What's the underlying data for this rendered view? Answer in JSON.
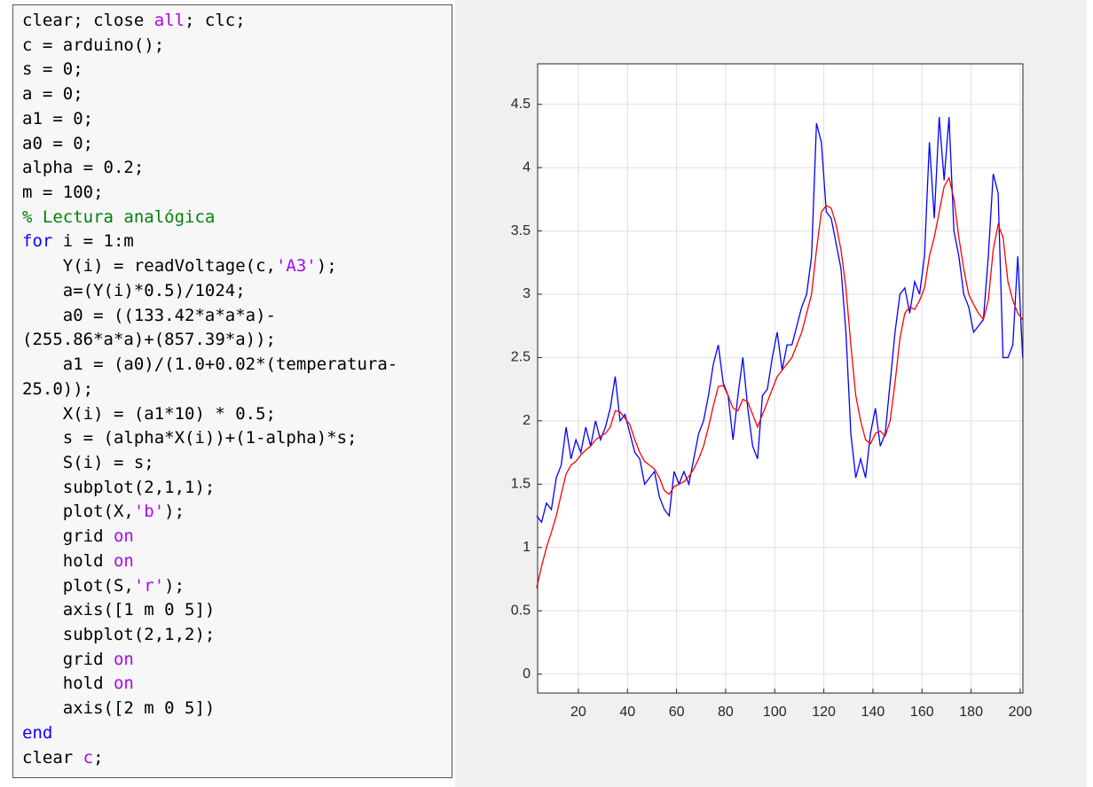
{
  "code": {
    "lines": [
      [
        "clear; close ",
        {
          "text": "all",
          "color": "#a709f5"
        },
        "; clc;"
      ],
      "c = arduino();",
      "s = 0;",
      "a = 0;",
      "a1 = 0;",
      "a0 = 0;",
      "alpha = 0.2;",
      "m = 100;",
      [
        {
          "text": "% Lectura analógica",
          "color": "#028009"
        }
      ],
      [
        {
          "text": "for",
          "color": "#0e00ff"
        },
        " i = 1:m"
      ],
      [
        "    Y(i) = readVoltage(c,",
        {
          "text": "'A3'",
          "color": "#a709f5"
        },
        ");"
      ],
      "    a=(Y(i)*0.5)/1024;",
      "    a0 = ((133.42*a*a*a)-",
      "(255.86*a*a)+(857.39*a));",
      "    a1 = (a0)/(1.0+0.02*(temperatura-",
      "25.0));",
      "    X(i) = (a1*10) * 0.5;",
      "    s = (alpha*X(i))+(1-alpha)*s;",
      "    S(i) = s;",
      "    subplot(2,1,1);",
      [
        "    plot(X,",
        {
          "text": "'b'",
          "color": "#a709f5"
        },
        ");"
      ],
      [
        "    grid ",
        {
          "text": "on",
          "color": "#a709f5"
        }
      ],
      [
        "    hold ",
        {
          "text": "on",
          "color": "#a709f5"
        }
      ],
      [
        "    plot(S,",
        {
          "text": "'r'",
          "color": "#a709f5"
        },
        ");"
      ],
      "    axis([1 m 0 5])",
      "    subplot(2,1,2);",
      [
        "    grid ",
        {
          "text": "on",
          "color": "#a709f5"
        }
      ],
      [
        "    hold ",
        {
          "text": "on",
          "color": "#a709f5"
        }
      ],
      "    axis([2 m 0 5])",
      [
        {
          "text": "end",
          "color": "#0e00ff"
        }
      ],
      [
        "clear ",
        {
          "text": "c",
          "color": "#a709f5"
        },
        ";"
      ]
    ]
  },
  "chart_data": {
    "type": "line",
    "grid": true,
    "x": [
      3,
      5,
      7,
      9,
      11,
      13,
      15,
      17,
      19,
      21,
      23,
      25,
      27,
      29,
      31,
      33,
      35,
      37,
      39,
      41,
      43,
      45,
      47,
      49,
      51,
      53,
      55,
      57,
      59,
      61,
      63,
      65,
      67,
      69,
      71,
      73,
      75,
      77,
      79,
      81,
      83,
      85,
      87,
      89,
      91,
      93,
      95,
      97,
      99,
      101,
      103,
      105,
      107,
      109,
      111,
      113,
      115,
      117,
      119,
      121,
      123,
      125,
      127,
      129,
      131,
      133,
      135,
      137,
      139,
      141,
      143,
      145,
      147,
      149,
      151,
      153,
      155,
      157,
      159,
      161,
      163,
      165,
      167,
      169,
      171,
      173,
      175,
      177,
      179,
      181,
      183,
      185,
      187,
      189,
      191,
      193,
      195,
      197,
      199,
      201
    ],
    "series": [
      {
        "color": "#0000ff",
        "values": [
          1.25,
          1.2,
          1.35,
          1.3,
          1.55,
          1.65,
          1.95,
          1.7,
          1.85,
          1.75,
          1.95,
          1.8,
          2.0,
          1.85,
          1.95,
          2.1,
          2.35,
          2.0,
          2.05,
          1.9,
          1.75,
          1.7,
          1.5,
          1.55,
          1.6,
          1.4,
          1.3,
          1.25,
          1.6,
          1.5,
          1.6,
          1.5,
          1.7,
          1.9,
          2.0,
          2.2,
          2.45,
          2.6,
          2.3,
          2.2,
          1.85,
          2.2,
          2.5,
          2.1,
          1.8,
          1.7,
          2.2,
          2.25,
          2.5,
          2.7,
          2.4,
          2.6,
          2.6,
          2.75,
          2.9,
          3.0,
          3.3,
          4.35,
          4.2,
          3.65,
          3.6,
          3.4,
          3.2,
          2.7,
          1.9,
          1.55,
          1.7,
          1.55,
          1.9,
          2.1,
          1.8,
          1.9,
          2.3,
          2.7,
          3.0,
          3.05,
          2.85,
          3.1,
          3.0,
          3.3,
          4.2,
          3.6,
          4.4,
          3.9,
          4.4,
          3.5,
          3.3,
          3.0,
          2.9,
          2.7,
          2.75,
          2.8,
          3.3,
          3.95,
          3.8,
          2.5,
          2.5,
          2.6,
          3.3,
          2.5
        ]
      },
      {
        "color": "#ff0000",
        "values": [
          0.68,
          0.85,
          1.0,
          1.12,
          1.25,
          1.42,
          1.58,
          1.65,
          1.68,
          1.73,
          1.77,
          1.8,
          1.85,
          1.88,
          1.9,
          1.95,
          2.08,
          2.07,
          2.02,
          1.97,
          1.85,
          1.75,
          1.68,
          1.65,
          1.62,
          1.55,
          1.45,
          1.42,
          1.48,
          1.5,
          1.52,
          1.56,
          1.62,
          1.7,
          1.8,
          1.95,
          2.12,
          2.27,
          2.28,
          2.2,
          2.1,
          2.08,
          2.17,
          2.15,
          2.05,
          1.95,
          2.05,
          2.15,
          2.25,
          2.35,
          2.4,
          2.45,
          2.5,
          2.6,
          2.7,
          2.85,
          3.0,
          3.35,
          3.65,
          3.7,
          3.68,
          3.55,
          3.35,
          3.05,
          2.6,
          2.2,
          2.0,
          1.85,
          1.82,
          1.9,
          1.92,
          1.88,
          2.0,
          2.3,
          2.65,
          2.85,
          2.9,
          2.88,
          2.95,
          3.05,
          3.3,
          3.45,
          3.65,
          3.85,
          3.92,
          3.75,
          3.45,
          3.2,
          3.0,
          2.92,
          2.85,
          2.8,
          2.95,
          3.35,
          3.55,
          3.45,
          3.1,
          2.95,
          2.85,
          2.8
        ]
      }
    ],
    "xlim": [
      3.4,
      201.1
    ],
    "ylim": [
      -0.15,
      4.82
    ],
    "xticks": [
      20,
      40,
      60,
      80,
      100,
      120,
      140,
      160,
      180,
      200
    ],
    "yticks": [
      0,
      0.5,
      1,
      1.5,
      2,
      2.5,
      3,
      3.5,
      4,
      4.5
    ]
  }
}
